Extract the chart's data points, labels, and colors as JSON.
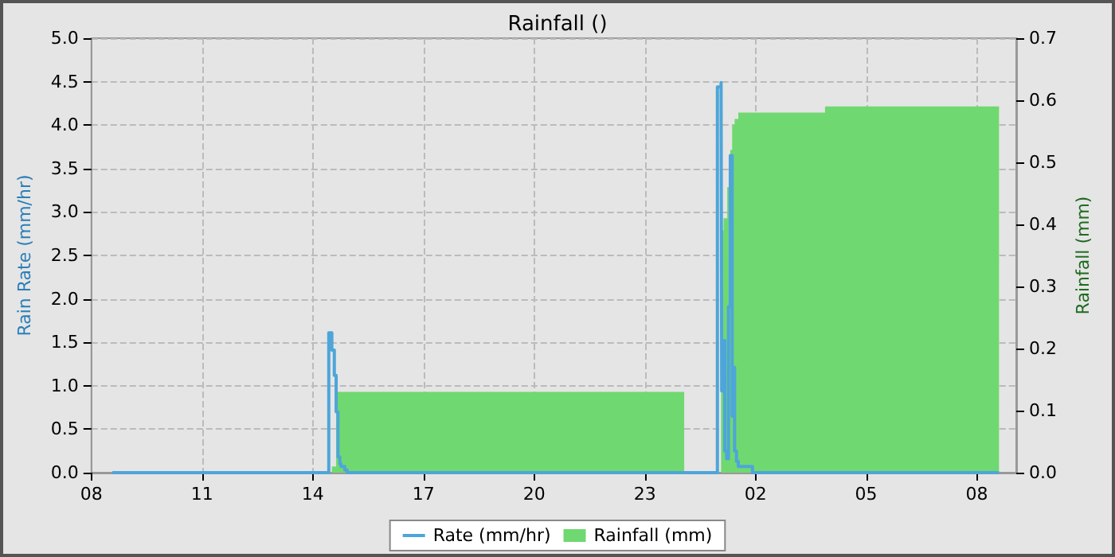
{
  "chart_data": {
    "type": "step",
    "title": "Rainfall ()",
    "ylabel": "Rain Rate (mm/hr)",
    "y2label": "Rainfall (mm)",
    "xlim": [
      "--01-01T08:00",
      "--01-02T09:04"
    ],
    "xticks": [
      {
        "value": "--01-01T08:00",
        "label": "08"
      },
      {
        "value": "--01-01T11:00",
        "label": "11"
      },
      {
        "value": "--01-01T14:00",
        "label": "14"
      },
      {
        "value": "--01-01T17:00",
        "label": "17"
      },
      {
        "value": "--01-01T20:00",
        "label": "20"
      },
      {
        "value": "--01-01T23:00",
        "label": "23"
      },
      {
        "value": "--01-02T02:00",
        "label": "02"
      },
      {
        "value": "--01-02T05:00",
        "label": "05"
      },
      {
        "value": "--01-02T08:00",
        "label": "08"
      }
    ],
    "ylim": [
      0,
      5
    ],
    "yticks": [
      {
        "value": 0,
        "label": "0.0"
      },
      {
        "value": 0.5,
        "label": "0.5"
      },
      {
        "value": 1,
        "label": "1.0"
      },
      {
        "value": 1.5,
        "label": "1.5"
      },
      {
        "value": 2,
        "label": "2.0"
      },
      {
        "value": 2.5,
        "label": "2.5"
      },
      {
        "value": 3,
        "label": "3.0"
      },
      {
        "value": 3.5,
        "label": "3.5"
      },
      {
        "value": 4,
        "label": "4.0"
      },
      {
        "value": 4.5,
        "label": "4.5"
      },
      {
        "value": 5,
        "label": "5.0"
      }
    ],
    "y2lim": [
      0,
      0.7
    ],
    "y2ticks": [
      {
        "value": 0,
        "label": "0.0"
      },
      {
        "value": 0.1,
        "label": "0.1"
      },
      {
        "value": 0.2,
        "label": "0.2"
      },
      {
        "value": 0.3,
        "label": "0.3"
      },
      {
        "value": 0.4,
        "label": "0.4"
      },
      {
        "value": 0.5,
        "label": "0.5"
      },
      {
        "value": 0.6,
        "label": "0.6"
      },
      {
        "value": 0.7,
        "label": "0.7"
      }
    ],
    "grid": true,
    "legend": "bottom",
    "marker": "none",
    "series": [
      {
        "name": "Rainfall (mm)",
        "type": "area",
        "axis": "y2",
        "color": "#70d870",
        "x": [
          "--01-01T08:34",
          "--01-01T14:31",
          "--01-01T14:38",
          "--01-02T00:04",
          "--01-02T01:04",
          "--01-02T01:08",
          "--01-02T01:14",
          "--01-02T01:19",
          "--01-02T01:22",
          "--01-02T01:26",
          "--01-02T01:32",
          "--01-02T03:53",
          "--01-02T08:36"
        ],
        "values": [
          0,
          0.01,
          0.13,
          0,
          0.39,
          0.41,
          0.46,
          0.52,
          0.56,
          0.57,
          0.58,
          0.59,
          0.59
        ]
      },
      {
        "name": "Rate (mm/hr)",
        "color": "#4ea5d9",
        "x": [
          "--01-01T08:34",
          "--01-01T14:26",
          "--01-01T14:31",
          "--01-01T14:35",
          "--01-01T14:38",
          "--01-01T14:41",
          "--01-01T14:44",
          "--01-01T14:46",
          "--01-01T14:52",
          "--01-01T14:56",
          "--01-02T00:58",
          "--01-02T01:04",
          "--01-02T01:05",
          "--01-02T01:08",
          "--01-02T01:10",
          "--01-02T01:13",
          "--01-02T01:16",
          "--01-02T01:19",
          "--01-02T01:22",
          "--01-02T01:24",
          "--01-02T01:26",
          "--01-02T01:29",
          "--01-02T01:32",
          "--01-02T01:55",
          "--01-02T08:36"
        ],
        "values": [
          0,
          1.61,
          1.41,
          1.12,
          0.7,
          0.18,
          0.1,
          0.07,
          0.03,
          0,
          4.44,
          4.49,
          0.94,
          1.52,
          0.25,
          0.16,
          1.91,
          3.65,
          0.65,
          1.21,
          0.25,
          0.13,
          0.07,
          0,
          0
        ]
      }
    ]
  }
}
